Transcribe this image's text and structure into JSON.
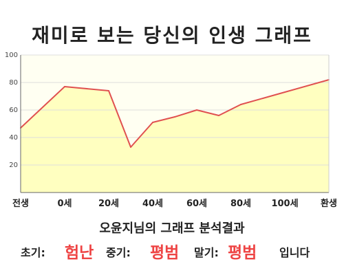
{
  "header": {
    "title": "재미로 보는 당신의 인생 그래프"
  },
  "chart_data": {
    "type": "area",
    "x_labels": [
      "전생",
      "0세",
      "20세",
      "40세",
      "60세",
      "80세",
      "100세",
      "환생"
    ],
    "points": [
      {
        "x": "전생",
        "y": 47
      },
      {
        "x": "0세",
        "y": 77
      },
      {
        "x": "20세",
        "y": 74
      },
      {
        "x": "30세",
        "y": 33
      },
      {
        "x": "40세",
        "y": 51
      },
      {
        "x": "50세",
        "y": 55
      },
      {
        "x": "60세",
        "y": 60
      },
      {
        "x": "70세",
        "y": 56
      },
      {
        "x": "80세",
        "y": 64
      },
      {
        "x": "100세",
        "y": 73
      },
      {
        "x": "환생",
        "y": 82
      }
    ],
    "ylim": [
      0,
      100
    ],
    "yticks": [
      20,
      40,
      60,
      80,
      100
    ],
    "grid": true,
    "line_color": "#e05050",
    "fill_color": "#ffffc0"
  },
  "result": {
    "title": "오윤지님의 그래프 분석결과",
    "early_label": "초기:",
    "early_value": "험난",
    "mid_label": "중기:",
    "mid_value": "평범",
    "late_label": "말기:",
    "late_value": "평범",
    "suffix": "입니다"
  },
  "colors": {
    "highlight": "#ee4444"
  }
}
